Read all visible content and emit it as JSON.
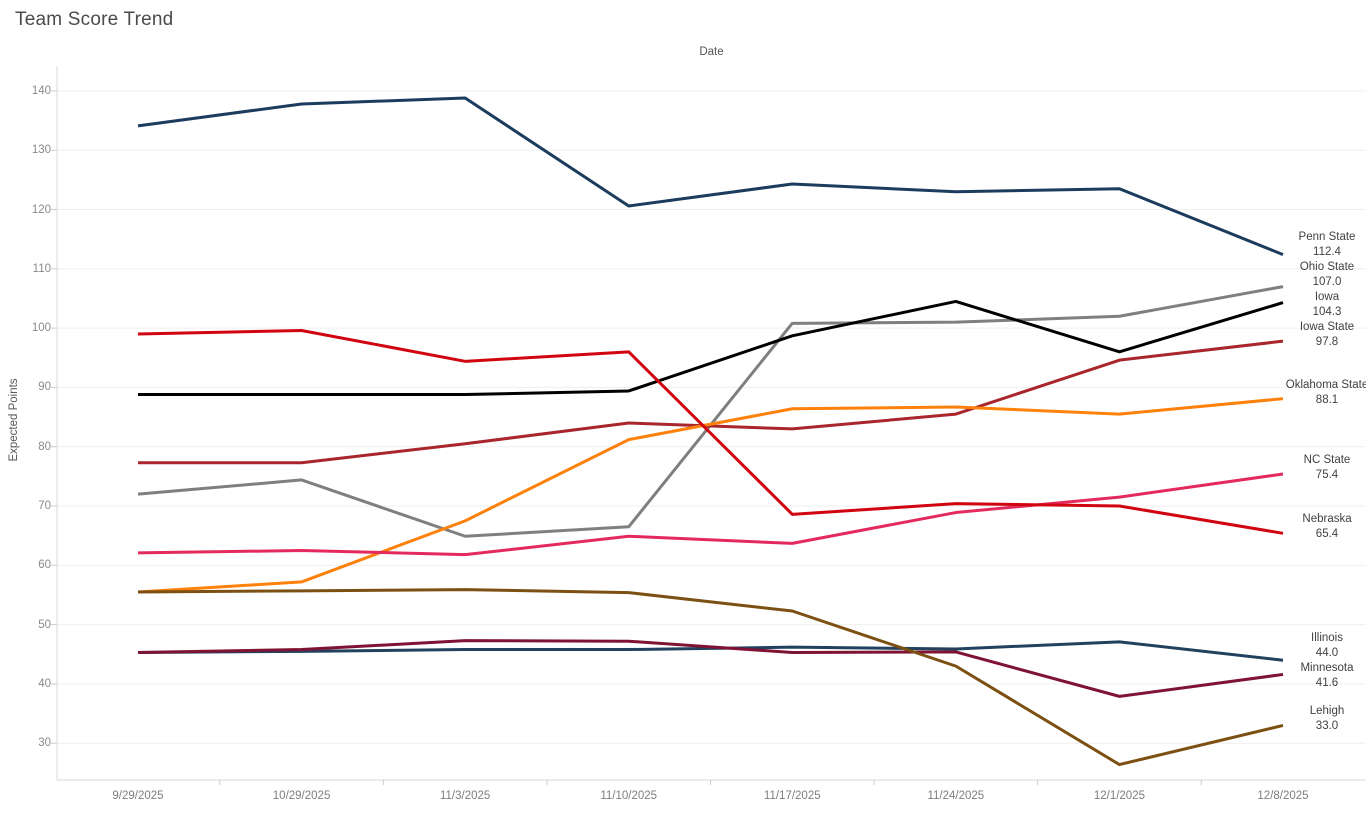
{
  "page": {
    "title": "Team Score Trend"
  },
  "chart_data": {
    "type": "line",
    "title": "Team Score Trend",
    "x_axis_title": "Date",
    "y_axis_title": "Expected Points",
    "categories": [
      "9/29/2025",
      "10/29/2025",
      "11/3/2025",
      "11/10/2025",
      "11/17/2025",
      "11/24/2025",
      "12/1/2025",
      "12/8/2025"
    ],
    "y_ticks": [
      30,
      40,
      50,
      60,
      70,
      80,
      90,
      100,
      110,
      120,
      130,
      140
    ],
    "ylim": [
      23.8,
      144.2
    ],
    "grid": "horizontal",
    "legend_position": "right-end-labels",
    "series": [
      {
        "name": "Penn State",
        "color": "#1c3c5e",
        "end_label": "112.4",
        "values": [
          134.1,
          137.8,
          138.8,
          120.6,
          124.3,
          123.0,
          123.5,
          112.4
        ]
      },
      {
        "name": "Ohio State",
        "color": "#7f7f7f",
        "end_label": "107.0",
        "values": [
          72.0,
          74.4,
          64.9,
          66.5,
          100.8,
          101.0,
          102.0,
          107.0
        ]
      },
      {
        "name": "Iowa",
        "color": "#000000",
        "end_label": "104.3",
        "values": [
          88.8,
          88.8,
          88.8,
          89.4,
          98.7,
          104.5,
          96.0,
          104.3
        ]
      },
      {
        "name": "Iowa State",
        "color": "#a8262c",
        "end_label": "97.8",
        "values": [
          77.3,
          77.3,
          80.5,
          84.0,
          83.0,
          85.5,
          94.6,
          97.8
        ]
      },
      {
        "name": "Oklahoma State",
        "color": "#fd810b",
        "end_label": "88.1",
        "values": [
          55.5,
          57.2,
          67.5,
          81.2,
          86.4,
          86.7,
          85.5,
          88.1
        ]
      },
      {
        "name": "NC State",
        "color": "#e42a5d",
        "end_label": "75.4",
        "values": [
          62.1,
          62.5,
          61.8,
          64.9,
          63.7,
          68.9,
          71.5,
          75.4
        ]
      },
      {
        "name": "Nebraska",
        "color": "#d10510",
        "end_label": "65.4",
        "values": [
          99.0,
          99.6,
          94.4,
          96.0,
          68.6,
          70.4,
          70.0,
          65.4
        ]
      },
      {
        "name": "Illinois",
        "color": "#21415f",
        "end_label": "44.0",
        "values": [
          45.3,
          45.5,
          45.8,
          45.8,
          46.2,
          45.9,
          47.1,
          44.0
        ]
      },
      {
        "name": "Minnesota",
        "color": "#7f1333",
        "end_label": "41.6",
        "values": [
          45.3,
          45.8,
          47.3,
          47.2,
          45.3,
          45.4,
          37.9,
          41.6
        ]
      },
      {
        "name": "Lehigh",
        "color": "#7c5012",
        "end_label": "33.0",
        "values": [
          55.5,
          55.7,
          55.9,
          55.4,
          52.3,
          43.0,
          26.4,
          33.0
        ]
      }
    ]
  }
}
